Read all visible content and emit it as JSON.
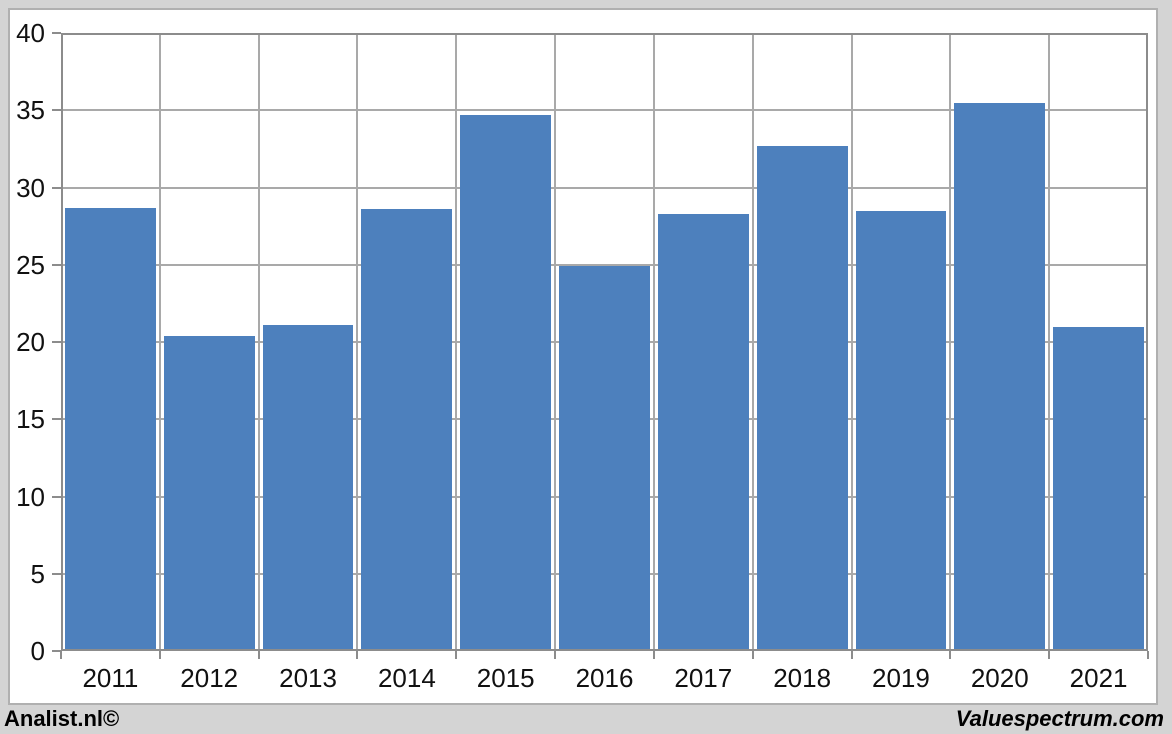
{
  "chart_data": {
    "type": "bar",
    "title": "",
    "categories": [
      "2011",
      "2012",
      "2013",
      "2014",
      "2015",
      "2016",
      "2017",
      "2018",
      "2019",
      "2020",
      "2021"
    ],
    "values": [
      28.7,
      20.4,
      21.1,
      28.6,
      34.7,
      24.9,
      28.3,
      32.7,
      28.5,
      35.5,
      21.0
    ],
    "xlabel": "",
    "ylabel": "",
    "ylim": [
      0,
      40
    ],
    "yticks": [
      0,
      5,
      10,
      15,
      20,
      25,
      30,
      35,
      40
    ],
    "grid": true,
    "legend_position": "none",
    "bar_color": "#4d80bd"
  },
  "branding": {
    "left": "Analist.nl©",
    "right": "Valuespectrum.com"
  },
  "colors": {
    "page_bg": "#d4d4d4",
    "card_bg": "#ffffff",
    "card_border": "#b0b0b0",
    "axis_line": "#8c8c8c",
    "gridline": "#a9a9a9",
    "bar": "#4d80bd",
    "text": "#111111"
  }
}
